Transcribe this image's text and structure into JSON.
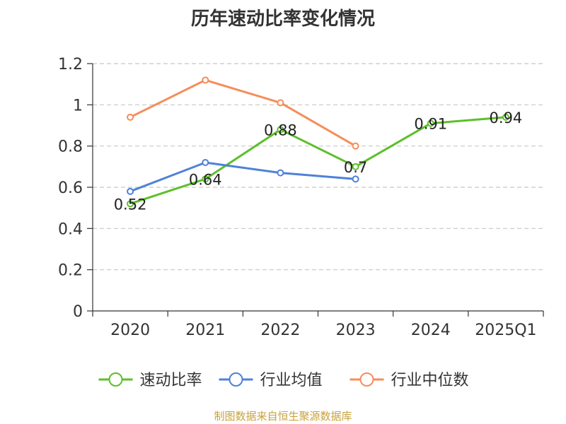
{
  "title": "历年速动比率变化情况",
  "source_text": "制图数据来自恒生聚源数据库",
  "chart_data": {
    "type": "line",
    "title": "历年速动比率变化情况",
    "categories": [
      "2020",
      "2021",
      "2022",
      "2023",
      "2024",
      "2025Q1"
    ],
    "ylim": [
      0,
      1.2
    ],
    "yticks": [
      "0",
      "0.2",
      "0.4",
      "0.6",
      "0.8",
      "1",
      "1.2"
    ],
    "grid": true,
    "legend_position": "bottom",
    "series": [
      {
        "name": "速动比率",
        "color": "#5cbf2a",
        "values": [
          0.52,
          0.64,
          0.88,
          0.7,
          0.91,
          0.94
        ],
        "labels": [
          "0.52",
          "0.64",
          "0.88",
          "0.7",
          "0.91",
          "0.94"
        ]
      },
      {
        "name": "行业均值",
        "color": "#4f81d8",
        "values": [
          0.58,
          0.72,
          0.67,
          0.64,
          null,
          null
        ]
      },
      {
        "name": "行业中位数",
        "color": "#f68d5a",
        "values": [
          0.94,
          1.12,
          1.01,
          0.8,
          null,
          null
        ]
      }
    ]
  }
}
